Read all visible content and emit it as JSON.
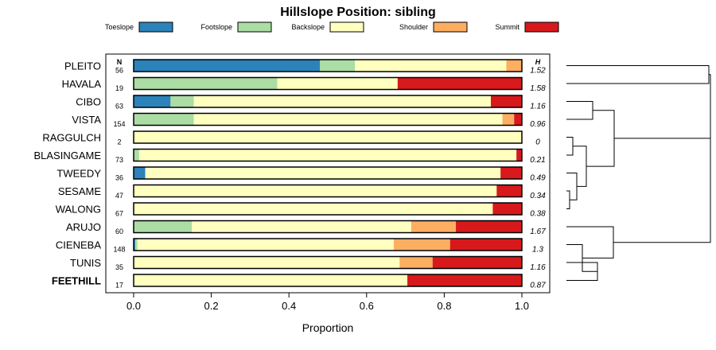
{
  "chart_data": {
    "type": "bar",
    "stacked": "horizontal-proportion",
    "title": "Hillslope Position: sibling",
    "xlabel": "Proportion",
    "ylabel": "",
    "xlim": [
      0,
      1
    ],
    "xticks": [
      "0.0",
      "0.2",
      "0.4",
      "0.6",
      "0.8",
      "1.0"
    ],
    "legend_position": "top",
    "n_header": "N",
    "h_header": "H",
    "highlight_category": "FEETHILL",
    "categories": [
      "PLEITO",
      "HAVALA",
      "CIBO",
      "VISTA",
      "RAGGULCH",
      "BLASINGAME",
      "TWEEDY",
      "SESAME",
      "WALONG",
      "ARUJO",
      "CIENEBA",
      "TUNIS",
      "FEETHILL"
    ],
    "n": [
      "56",
      "19",
      "63",
      "154",
      "2",
      "73",
      "36",
      "47",
      "67",
      "60",
      "148",
      "35",
      "17"
    ],
    "h": [
      "1.52",
      "1.58",
      "1.16",
      "0.96",
      "0",
      "0.21",
      "0.49",
      "0.34",
      "0.38",
      "1.67",
      "1.3",
      "1.16",
      "0.87"
    ],
    "series": [
      {
        "name": "Toeslope",
        "color": "#2b83ba",
        "values": [
          0.48,
          0,
          0.095,
          0,
          0,
          0,
          0.03,
          0,
          0,
          0,
          0.004,
          0,
          0
        ]
      },
      {
        "name": "Footslope",
        "color": "#abdda4",
        "values": [
          0.09,
          0.37,
          0.06,
          0.155,
          0,
          0.014,
          0,
          0,
          0,
          0.15,
          0.006,
          0,
          0
        ]
      },
      {
        "name": "Backslope",
        "color": "#ffffbf",
        "values": [
          0.39,
          0.31,
          0.765,
          0.795,
          1.0,
          0.972,
          0.915,
          0.935,
          0.925,
          0.565,
          0.66,
          0.685,
          0.705
        ]
      },
      {
        "name": "Shoulder",
        "color": "#fdae61",
        "values": [
          0.04,
          0,
          0,
          0.03,
          0,
          0,
          0,
          0,
          0,
          0.115,
          0.145,
          0.085,
          0
        ]
      },
      {
        "name": "Summit",
        "color": "#d7191c",
        "values": [
          0,
          0.32,
          0.08,
          0.02,
          0,
          0.014,
          0.055,
          0.065,
          0.075,
          0.17,
          0.185,
          0.23,
          0.295
        ]
      }
    ]
  }
}
